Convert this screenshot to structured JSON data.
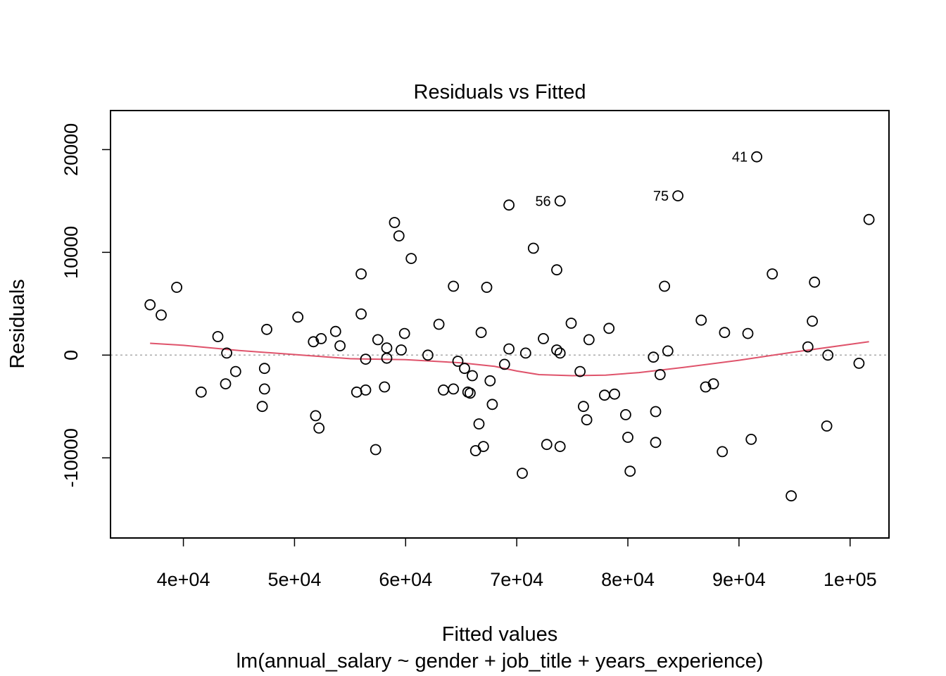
{
  "chart_data": {
    "type": "scatter",
    "title": "Residuals vs Fitted",
    "xlabel": "Fitted values",
    "subtitle": "lm(annual_salary ~ gender + job_title + years_experience)",
    "ylabel": "Residuals",
    "xlim": [
      33440,
      103500
    ],
    "ylim": [
      -17800,
      23800
    ],
    "x_ticks": [
      40000,
      50000,
      60000,
      70000,
      80000,
      90000,
      100000
    ],
    "x_tick_labels": [
      "4e+04",
      "5e+04",
      "6e+04",
      "7e+04",
      "8e+04",
      "9e+04",
      "1e+05"
    ],
    "y_ticks": [
      -10000,
      0,
      10000,
      20000
    ],
    "y_tick_labels": [
      "-10000",
      "0",
      "10000",
      "20000"
    ],
    "grid": false,
    "reference_line": {
      "y": 0,
      "style": "dotted",
      "color": "#aaaaaa"
    },
    "colors": {
      "points": "#000000",
      "smoother": "#df536b",
      "frame": "#000000"
    },
    "points": [
      {
        "x": 37000,
        "y": 4900
      },
      {
        "x": 38000,
        "y": 3900
      },
      {
        "x": 39400,
        "y": 6600
      },
      {
        "x": 41600,
        "y": -3600
      },
      {
        "x": 43100,
        "y": 1800
      },
      {
        "x": 43800,
        "y": -2800
      },
      {
        "x": 43900,
        "y": 200
      },
      {
        "x": 44700,
        "y": -1600
      },
      {
        "x": 47100,
        "y": -5000
      },
      {
        "x": 47300,
        "y": -1300
      },
      {
        "x": 47300,
        "y": -3300
      },
      {
        "x": 47500,
        "y": 2500
      },
      {
        "x": 50300,
        "y": 3700
      },
      {
        "x": 51700,
        "y": 1300
      },
      {
        "x": 51900,
        "y": -5900
      },
      {
        "x": 52200,
        "y": -7100
      },
      {
        "x": 52400,
        "y": 1600
      },
      {
        "x": 53700,
        "y": 2300
      },
      {
        "x": 54100,
        "y": 900
      },
      {
        "x": 55600,
        "y": -3600
      },
      {
        "x": 56000,
        "y": 7900
      },
      {
        "x": 56000,
        "y": 4000
      },
      {
        "x": 56400,
        "y": -400
      },
      {
        "x": 56400,
        "y": -3400
      },
      {
        "x": 57300,
        "y": -9200
      },
      {
        "x": 57500,
        "y": 1500
      },
      {
        "x": 58100,
        "y": -3100
      },
      {
        "x": 58300,
        "y": 700
      },
      {
        "x": 58300,
        "y": -300
      },
      {
        "x": 59000,
        "y": 12900
      },
      {
        "x": 59400,
        "y": 11600
      },
      {
        "x": 59600,
        "y": 500
      },
      {
        "x": 59900,
        "y": 2100
      },
      {
        "x": 60500,
        "y": 9400
      },
      {
        "x": 62000,
        "y": 0
      },
      {
        "x": 63000,
        "y": 3000
      },
      {
        "x": 63400,
        "y": -3400
      },
      {
        "x": 64300,
        "y": 6700
      },
      {
        "x": 64300,
        "y": -3300
      },
      {
        "x": 64700,
        "y": -600
      },
      {
        "x": 65300,
        "y": -1300
      },
      {
        "x": 65600,
        "y": -3600
      },
      {
        "x": 65800,
        "y": -3700
      },
      {
        "x": 66000,
        "y": -2000
      },
      {
        "x": 66300,
        "y": -9300
      },
      {
        "x": 66600,
        "y": -6700
      },
      {
        "x": 66800,
        "y": 2200
      },
      {
        "x": 67000,
        "y": -8900
      },
      {
        "x": 67300,
        "y": 6600
      },
      {
        "x": 67600,
        "y": -2500
      },
      {
        "x": 67800,
        "y": -4800
      },
      {
        "x": 68900,
        "y": -900
      },
      {
        "x": 69300,
        "y": 14600
      },
      {
        "x": 69300,
        "y": 600
      },
      {
        "x": 70500,
        "y": -11500
      },
      {
        "x": 70800,
        "y": 200
      },
      {
        "x": 71500,
        "y": 10400
      },
      {
        "x": 72400,
        "y": 1600
      },
      {
        "x": 72700,
        "y": -8700
      },
      {
        "x": 73600,
        "y": 8300
      },
      {
        "x": 73600,
        "y": 500
      },
      {
        "x": 73900,
        "y": 15000,
        "label": "56"
      },
      {
        "x": 73900,
        "y": 200
      },
      {
        "x": 73900,
        "y": -8900
      },
      {
        "x": 74900,
        "y": 3100
      },
      {
        "x": 75700,
        "y": -1600
      },
      {
        "x": 76000,
        "y": -5000
      },
      {
        "x": 76300,
        "y": -6300
      },
      {
        "x": 76500,
        "y": 1500
      },
      {
        "x": 77900,
        "y": -3900
      },
      {
        "x": 78300,
        "y": 2600
      },
      {
        "x": 78800,
        "y": -3800
      },
      {
        "x": 79800,
        "y": -5800
      },
      {
        "x": 80000,
        "y": -8000
      },
      {
        "x": 80200,
        "y": -11300
      },
      {
        "x": 82300,
        "y": -200
      },
      {
        "x": 82500,
        "y": -5500
      },
      {
        "x": 82500,
        "y": -8500
      },
      {
        "x": 82900,
        "y": -1900
      },
      {
        "x": 83300,
        "y": 6700
      },
      {
        "x": 83600,
        "y": 400
      },
      {
        "x": 84500,
        "y": 15500,
        "label": "75"
      },
      {
        "x": 86600,
        "y": 3400
      },
      {
        "x": 87000,
        "y": -3100
      },
      {
        "x": 87700,
        "y": -2800
      },
      {
        "x": 88500,
        "y": -9400
      },
      {
        "x": 88700,
        "y": 2200
      },
      {
        "x": 90800,
        "y": 2100
      },
      {
        "x": 91100,
        "y": -8200
      },
      {
        "x": 91600,
        "y": 19300,
        "label": "41"
      },
      {
        "x": 93000,
        "y": 7900
      },
      {
        "x": 94700,
        "y": -13700
      },
      {
        "x": 96200,
        "y": 800
      },
      {
        "x": 96600,
        "y": 3300
      },
      {
        "x": 96800,
        "y": 7100
      },
      {
        "x": 97900,
        "y": -6900
      },
      {
        "x": 98000,
        "y": 0
      },
      {
        "x": 100800,
        "y": -800
      },
      {
        "x": 101700,
        "y": 13200
      }
    ],
    "smoother": [
      {
        "x": 37000,
        "y": 1150
      },
      {
        "x": 40000,
        "y": 950
      },
      {
        "x": 45000,
        "y": 450
      },
      {
        "x": 50000,
        "y": 50
      },
      {
        "x": 55000,
        "y": -350
      },
      {
        "x": 60000,
        "y": -450
      },
      {
        "x": 65000,
        "y": -750
      },
      {
        "x": 68000,
        "y": -1100
      },
      {
        "x": 70000,
        "y": -1550
      },
      {
        "x": 72000,
        "y": -1900
      },
      {
        "x": 75000,
        "y": -2000
      },
      {
        "x": 78000,
        "y": -1950
      },
      {
        "x": 81000,
        "y": -1700
      },
      {
        "x": 85000,
        "y": -1200
      },
      {
        "x": 90000,
        "y": -500
      },
      {
        "x": 95000,
        "y": 300
      },
      {
        "x": 101700,
        "y": 1300
      }
    ]
  }
}
